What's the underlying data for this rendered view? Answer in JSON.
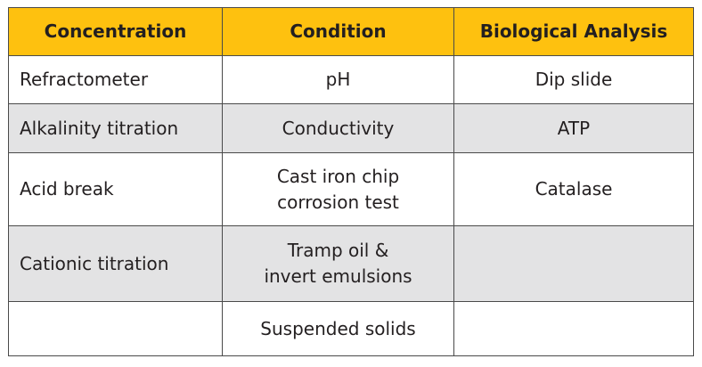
{
  "table": {
    "headers": [
      "Concentration",
      "Condition",
      "Biological Analysis"
    ],
    "rows": [
      {
        "concentration": "Refractometer",
        "condition": [
          "pH"
        ],
        "biological": "Dip slide",
        "shaded": false
      },
      {
        "concentration": "Alkalinity titration",
        "condition": [
          "Conductivity"
        ],
        "biological": "ATP",
        "shaded": true
      },
      {
        "concentration": "Acid break",
        "condition": [
          "Cast iron chip",
          "corrosion test"
        ],
        "biological": "Catalase",
        "shaded": false
      },
      {
        "concentration": "Cationic titration",
        "condition": [
          "Tramp oil &",
          "invert emulsions"
        ],
        "biological": "",
        "shaded": true
      },
      {
        "concentration": "",
        "condition": [
          "Suspended solids"
        ],
        "biological": "",
        "shaded": false
      }
    ]
  },
  "colors": {
    "header_bg": "#fec10f",
    "shaded_row_bg": "#e3e3e4",
    "border": "#4a4a4a",
    "text": "#231f20"
  }
}
